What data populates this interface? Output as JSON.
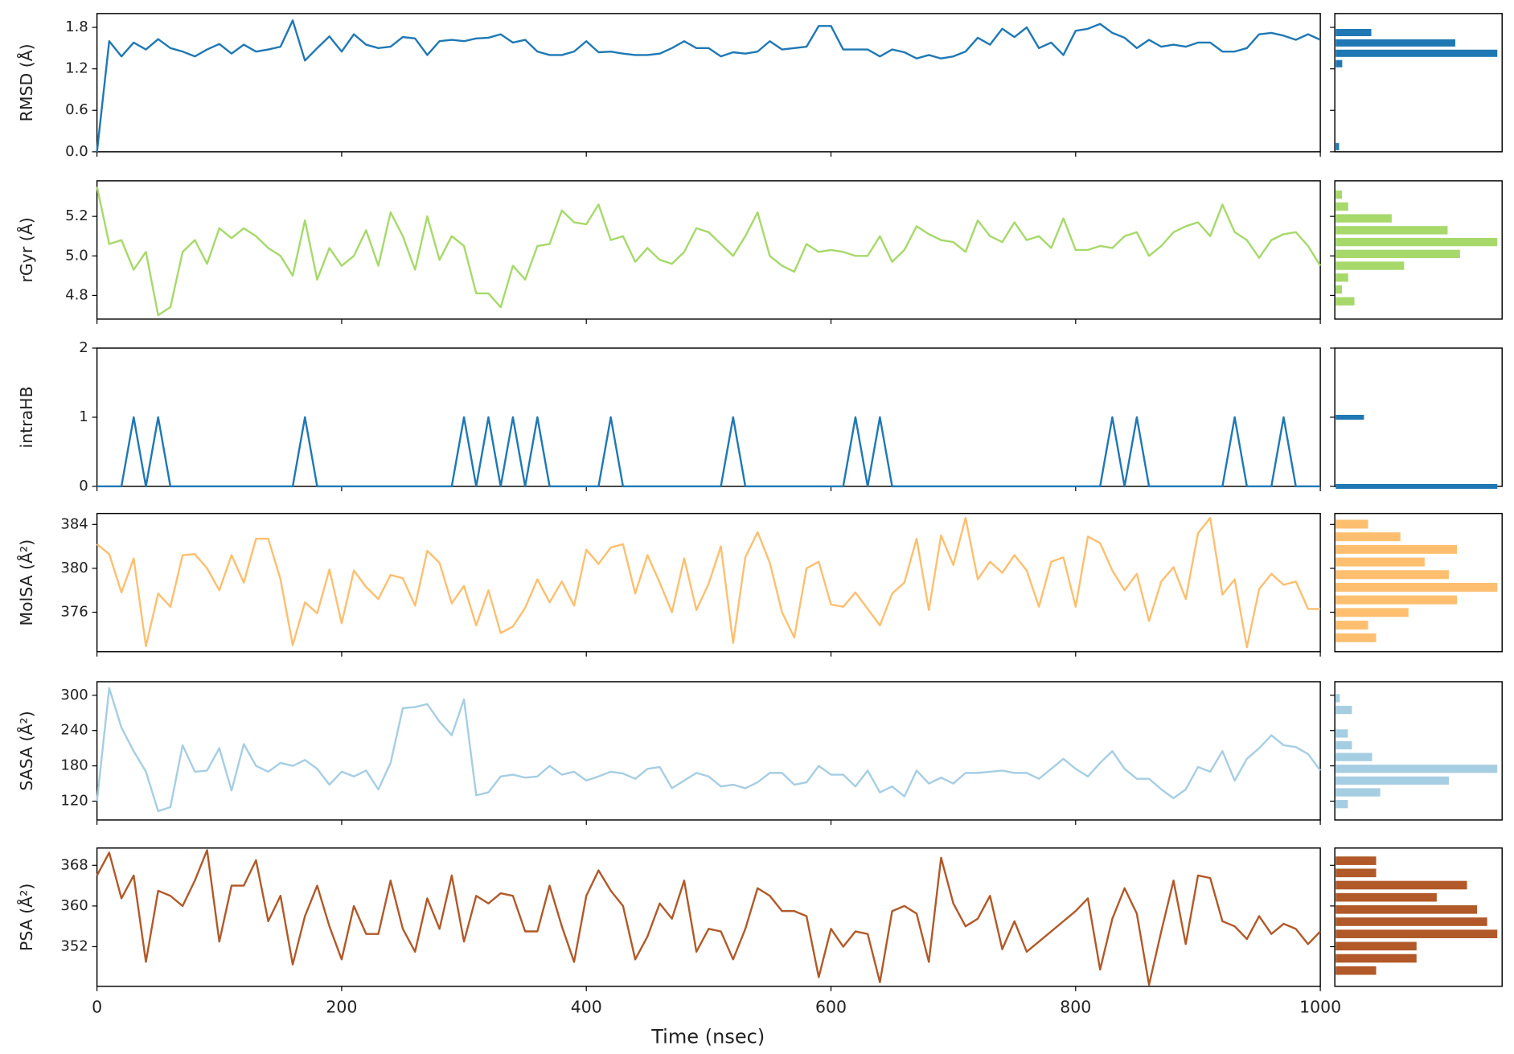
{
  "chart_data": {
    "type": "line",
    "xlabel": "Time (nsec)",
    "xlim": [
      0,
      1000
    ],
    "xticks": [
      0,
      200,
      400,
      600,
      800,
      1000
    ],
    "x": [
      0,
      10,
      20,
      30,
      40,
      50,
      60,
      70,
      80,
      90,
      100,
      110,
      120,
      130,
      140,
      150,
      160,
      170,
      180,
      190,
      200,
      210,
      220,
      230,
      240,
      250,
      260,
      270,
      280,
      290,
      300,
      310,
      320,
      330,
      340,
      350,
      360,
      370,
      380,
      390,
      400,
      410,
      420,
      430,
      440,
      450,
      460,
      470,
      480,
      490,
      500,
      510,
      520,
      530,
      540,
      550,
      560,
      570,
      580,
      590,
      600,
      610,
      620,
      630,
      640,
      650,
      660,
      670,
      680,
      690,
      700,
      710,
      720,
      730,
      740,
      750,
      760,
      770,
      780,
      790,
      800,
      810,
      820,
      830,
      840,
      850,
      860,
      870,
      880,
      890,
      900,
      910,
      920,
      930,
      940,
      950,
      960,
      970,
      980,
      990,
      1000
    ],
    "panels": [
      {
        "ylabel": "RMSD (Å)",
        "color": "#1f78b4",
        "ylim": [
          0,
          2.0
        ],
        "yticks": [
          {
            "value": 0,
            "label": "0.0"
          },
          0.6,
          1.2,
          1.8
        ],
        "values": [
          0,
          1.6,
          1.38,
          1.58,
          1.48,
          1.63,
          1.5,
          1.45,
          1.38,
          1.48,
          1.56,
          1.42,
          1.55,
          1.45,
          1.48,
          1.52,
          1.9,
          1.32,
          1.5,
          1.67,
          1.45,
          1.7,
          1.55,
          1.5,
          1.52,
          1.66,
          1.64,
          1.4,
          1.6,
          1.62,
          1.6,
          1.64,
          1.65,
          1.7,
          1.58,
          1.62,
          1.45,
          1.4,
          1.4,
          1.45,
          1.6,
          1.44,
          1.45,
          1.42,
          1.4,
          1.4,
          1.42,
          1.5,
          1.6,
          1.5,
          1.5,
          1.38,
          1.44,
          1.42,
          1.45,
          1.6,
          1.48,
          1.5,
          1.52,
          1.82,
          1.82,
          1.48,
          1.48,
          1.48,
          1.38,
          1.48,
          1.44,
          1.35,
          1.4,
          1.35,
          1.38,
          1.45,
          1.65,
          1.55,
          1.78,
          1.66,
          1.8,
          1.5,
          1.58,
          1.4,
          1.75,
          1.78,
          1.85,
          1.72,
          1.65,
          1.5,
          1.62,
          1.52,
          1.55,
          1.52,
          1.58,
          1.58,
          1.45,
          1.45,
          1.5,
          1.7,
          1.72,
          1.68,
          1.62,
          1.7,
          1.62
        ],
        "hist": {
          "bins": [
            0,
            0.15,
            0.3,
            0.45,
            0.6,
            0.75,
            0.9,
            1.05,
            1.2,
            1.35,
            1.5,
            1.65,
            1.8
          ],
          "counts": [
            1,
            0,
            0,
            0,
            0,
            0,
            0,
            0,
            2,
            50,
            37,
            11
          ]
        }
      },
      {
        "ylabel": "rGyr (Å)",
        "color": "#a6d96a",
        "ylim": [
          4.68,
          5.38
        ],
        "yticks": [
          4.8,
          {
            "value": 5,
            "label": "5.0"
          },
          5.2
        ],
        "values": [
          5.35,
          5.06,
          5.08,
          4.93,
          5.02,
          4.7,
          4.74,
          5.02,
          5.08,
          4.96,
          5.14,
          5.09,
          5.14,
          5.1,
          5.04,
          5.0,
          4.9,
          5.18,
          4.88,
          5.04,
          4.95,
          5.0,
          5.13,
          4.95,
          5.22,
          5.1,
          4.93,
          5.2,
          4.98,
          5.1,
          5.05,
          4.81,
          4.81,
          4.74,
          4.95,
          4.88,
          5.05,
          5.06,
          5.23,
          5.17,
          5.16,
          5.26,
          5.08,
          5.1,
          4.97,
          5.04,
          4.98,
          4.96,
          5.02,
          5.14,
          5.12,
          5.06,
          5.0,
          5.1,
          5.22,
          5.0,
          4.95,
          4.92,
          5.06,
          5.02,
          5.03,
          5.02,
          5.0,
          5.0,
          5.1,
          4.97,
          5.03,
          5.15,
          5.11,
          5.08,
          5.07,
          5.02,
          5.18,
          5.1,
          5.07,
          5.17,
          5.08,
          5.1,
          5.04,
          5.19,
          5.03,
          5.03,
          5.05,
          5.04,
          5.1,
          5.12,
          5.0,
          5.05,
          5.12,
          5.15,
          5.17,
          5.1,
          5.26,
          5.12,
          5.08,
          4.99,
          5.08,
          5.11,
          5.12,
          5.05,
          4.95
        ],
        "hist": {
          "bins": [
            4.74,
            4.8,
            4.86,
            4.92,
            4.98,
            5.04,
            5.1,
            5.16,
            5.22,
            5.28,
            5.34
          ],
          "counts": [
            3,
            1,
            2,
            11,
            20,
            26,
            18,
            9,
            2,
            1
          ]
        }
      },
      {
        "ylabel": "intraHB",
        "color": "#1f78b4",
        "ylim": [
          0,
          2
        ],
        "yticks": [
          0,
          1,
          2
        ],
        "values": [
          0,
          0,
          0,
          1,
          0,
          1,
          0,
          0,
          0,
          0,
          0,
          0,
          0,
          0,
          0,
          0,
          0,
          1,
          0,
          0,
          0,
          0,
          0,
          0,
          0,
          0,
          0,
          0,
          0,
          0,
          1,
          0,
          1,
          0,
          1,
          0,
          1,
          0,
          0,
          0,
          0,
          0,
          1,
          0,
          0,
          0,
          0,
          0,
          0,
          0,
          0,
          0,
          1,
          0,
          0,
          0,
          0,
          0,
          0,
          0,
          0,
          0,
          1,
          0,
          1,
          0,
          0,
          0,
          0,
          0,
          0,
          0,
          0,
          0,
          0,
          0,
          0,
          0,
          0,
          0,
          0,
          0,
          0,
          1,
          0,
          1,
          0,
          0,
          0,
          0,
          0,
          0,
          0,
          1,
          0,
          0,
          0,
          1,
          0,
          0,
          0
        ],
        "hist": {
          "bins": [
            -0.05,
            0.05,
            0.95,
            1.05
          ],
          "counts": [
            86,
            0,
            15
          ]
        }
      },
      {
        "ylabel": "MolSA (Å²)",
        "color": "#fdbf6f",
        "ylim": [
          372.4,
          385
        ],
        "yticks": [
          376,
          380,
          384
        ],
        "values": [
          382.2,
          381.3,
          377.8,
          380.9,
          372.9,
          377.7,
          376.5,
          381.2,
          381.3,
          380.0,
          378.0,
          381.2,
          378.7,
          382.7,
          382.7,
          379.0,
          373.0,
          376.9,
          375.9,
          379.9,
          375.0,
          379.8,
          378.3,
          377.2,
          379.4,
          379.1,
          376.6,
          381.6,
          380.5,
          376.8,
          378.4,
          374.8,
          378.0,
          374.1,
          374.7,
          376.4,
          379.0,
          376.9,
          378.8,
          376.6,
          381.7,
          380.4,
          381.9,
          382.2,
          377.7,
          381.2,
          378.7,
          376.0,
          380.9,
          376.2,
          378.6,
          382.0,
          373.2,
          381.0,
          383.3,
          380.5,
          376.0,
          373.7,
          380.0,
          380.6,
          376.7,
          376.5,
          377.8,
          376.3,
          374.8,
          377.7,
          378.7,
          382.7,
          376.2,
          383.0,
          380.3,
          384.6,
          379.0,
          380.6,
          379.6,
          381.2,
          379.8,
          376.5,
          380.6,
          381.0,
          376.5,
          382.9,
          382.3,
          379.8,
          378.0,
          379.5,
          375.2,
          378.8,
          380.1,
          377.2,
          383.2,
          384.6,
          377.6,
          379.0,
          372.8,
          378.1,
          379.5,
          378.5,
          378.8,
          376.3,
          376.3
        ],
        "hist": {
          "bins": [
            373.1,
            374.25,
            375.4,
            376.55,
            377.7,
            378.85,
            380.0,
            381.15,
            382.3,
            383.45,
            384.6
          ],
          "counts": [
            5,
            4,
            9,
            15,
            20,
            14,
            11,
            15,
            8,
            4
          ]
        }
      },
      {
        "ylabel": "SASA (Å²)",
        "color": "#a6cee3",
        "ylim": [
          88,
          323
        ],
        "yticks": [
          120,
          180,
          240,
          300
        ],
        "values": [
          120,
          312,
          245,
          205,
          170,
          103,
          110,
          215,
          170,
          172,
          210,
          138,
          217,
          180,
          170,
          185,
          180,
          190,
          175,
          148,
          170,
          162,
          172,
          140,
          185,
          278,
          280,
          285,
          255,
          232,
          293,
          130,
          135,
          162,
          165,
          160,
          162,
          180,
          165,
          170,
          155,
          162,
          170,
          167,
          158,
          175,
          178,
          142,
          155,
          168,
          162,
          145,
          148,
          142,
          152,
          168,
          168,
          148,
          152,
          180,
          165,
          165,
          145,
          172,
          135,
          145,
          128,
          172,
          150,
          160,
          150,
          168,
          168,
          170,
          172,
          168,
          168,
          158,
          175,
          192,
          175,
          162,
          185,
          205,
          175,
          158,
          158,
          140,
          125,
          140,
          178,
          170,
          205,
          155,
          192,
          210,
          232,
          215,
          212,
          200,
          172
        ],
        "hist": {
          "bins": [
            105,
            125,
            145,
            165,
            185,
            205,
            225,
            245,
            265,
            285,
            305
          ],
          "counts": [
            3,
            11,
            28,
            40,
            9,
            4,
            3,
            0,
            4,
            1
          ]
        }
      },
      {
        "ylabel": "PSA (Å²)",
        "color": "#b15928",
        "ylim": [
          344.2,
          371.4
        ],
        "yticks": [
          352,
          360,
          368
        ],
        "values": [
          366,
          370.5,
          361.5,
          366,
          349,
          363,
          362,
          360,
          365,
          371,
          353,
          364,
          364,
          369,
          357,
          362,
          348.5,
          358,
          364,
          356,
          349.5,
          360,
          354.5,
          354.5,
          365,
          355.5,
          351,
          361.5,
          355.5,
          366,
          353,
          362,
          360.5,
          362.5,
          362,
          355,
          355,
          364,
          356,
          349,
          362,
          367,
          363,
          360,
          349.5,
          354,
          360.5,
          357.5,
          365,
          351,
          355.5,
          355,
          349.5,
          355.5,
          363.5,
          362,
          359,
          359,
          358,
          346,
          355.5,
          352,
          355,
          354.5,
          345,
          359,
          360,
          358.5,
          349,
          369.5,
          360.5,
          356,
          357.5,
          362,
          351.5,
          357,
          351,
          353,
          355,
          357,
          359,
          361.5,
          347.5,
          357.5,
          363.5,
          358.5,
          344.5,
          355,
          365,
          352.5,
          366,
          365.5,
          357,
          356,
          353.5,
          358,
          354.5,
          356.5,
          355.5,
          352.5,
          355
        ],
        "hist": {
          "bins": [
            346.1,
            348.5,
            350.9,
            353.3,
            355.7,
            358.1,
            360.5,
            362.9,
            365.3,
            367.7,
            370.1
          ],
          "counts": [
            4,
            8,
            8,
            16,
            15,
            14,
            10,
            13,
            4,
            4
          ]
        }
      }
    ]
  }
}
